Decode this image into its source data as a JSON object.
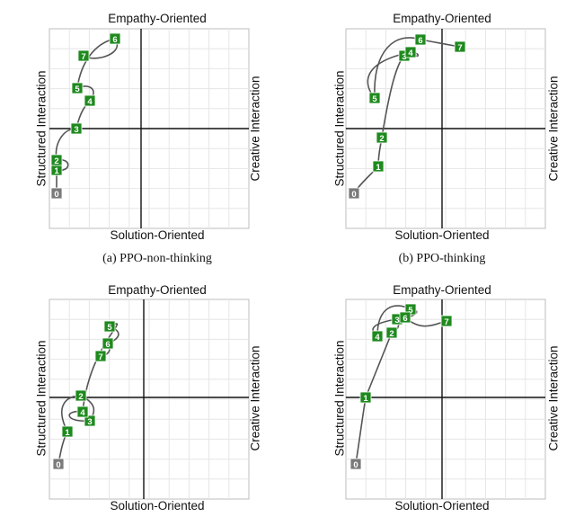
{
  "colors": {
    "node": "#1e8a1e",
    "start_node": "#7a7a7a",
    "arrow": "#555555",
    "grid": "#e6e6e6",
    "axis": "#111111"
  },
  "panels": [
    {
      "axis_top": "Empathy-Oriented",
      "axis_bottom": "Solution-Oriented",
      "axis_left": "Structured Interaction",
      "axis_right": "Creative Interaction",
      "caption": "(a) PPO-non-thinking",
      "nodes": [
        {
          "label": "0",
          "start": true
        },
        {
          "label": "1"
        },
        {
          "label": "2"
        },
        {
          "label": "3"
        },
        {
          "label": "4"
        },
        {
          "label": "5"
        },
        {
          "label": "6"
        },
        {
          "label": "7"
        }
      ]
    },
    {
      "axis_top": "Empathy-Oriented",
      "axis_bottom": "Solution-Oriented",
      "axis_left": "Structured Interaction",
      "axis_right": "Creative Interaction",
      "caption": "(b) PPO-thinking",
      "nodes": [
        {
          "label": "0",
          "start": true
        },
        {
          "label": "1"
        },
        {
          "label": "2"
        },
        {
          "label": "3"
        },
        {
          "label": "4"
        },
        {
          "label": "5"
        },
        {
          "label": "6"
        },
        {
          "label": "7"
        }
      ]
    },
    {
      "axis_top": "Empathy-Oriented",
      "axis_bottom": "Solution-Oriented",
      "axis_left": "Structured Interaction",
      "axis_right": "Creative Interaction",
      "caption": "",
      "nodes": [
        {
          "label": "0",
          "start": true
        },
        {
          "label": "1"
        },
        {
          "label": "2"
        },
        {
          "label": "3"
        },
        {
          "label": "4"
        },
        {
          "label": "5"
        },
        {
          "label": "6"
        },
        {
          "label": "7"
        }
      ]
    },
    {
      "axis_top": "Empathy-Oriented",
      "axis_bottom": "Solution-Oriented",
      "axis_left": "Structured Interaction",
      "axis_right": "Creative Interaction",
      "caption": "",
      "nodes": [
        {
          "label": "0",
          "start": true
        },
        {
          "label": "1"
        },
        {
          "label": "2"
        },
        {
          "label": "3"
        },
        {
          "label": "4"
        },
        {
          "label": "5"
        },
        {
          "label": "6"
        },
        {
          "label": "7"
        }
      ]
    }
  ]
}
